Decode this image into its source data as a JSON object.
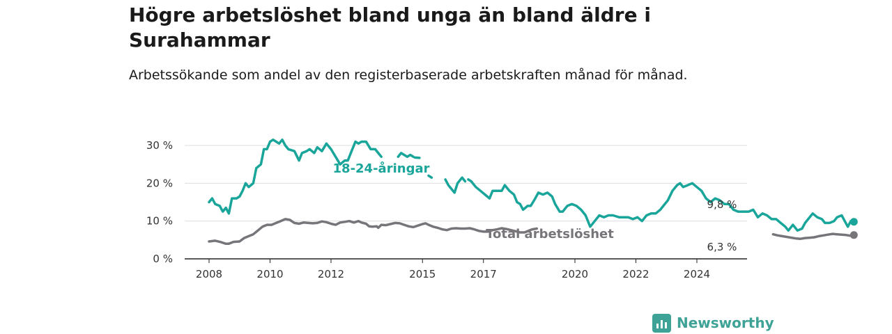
{
  "title": "Högre arbetslöshet bland unga än bland äldre i Surahammar",
  "subtitle": "Arbetssökande som andel av den registerbaserade arbetskraften månad för månad.",
  "brand": {
    "name": "Newsworthy",
    "icon": "newsworthy-bar-chart-icon",
    "color": "#3ea396"
  },
  "chart_data": {
    "type": "line",
    "x_ticks": [
      "2008",
      "2010",
      "2012",
      "2015",
      "2017",
      "2020",
      "2022",
      "2024"
    ],
    "y_ticks": [
      "0 %",
      "10 %",
      "20 %",
      "30 %"
    ],
    "ylim": [
      0,
      30
    ],
    "grid": "horizontal",
    "series": [
      {
        "name": "18-24-åringar",
        "color": "#1aa59a",
        "end_label": "9,8 %",
        "points": [
          [
            2008.0,
            15.0
          ],
          [
            2008.1,
            16.0
          ],
          [
            2008.2,
            14.5
          ],
          [
            2008.35,
            14.0
          ],
          [
            2008.45,
            12.5
          ],
          [
            2008.55,
            13.5
          ],
          [
            2008.65,
            12.0
          ],
          [
            2008.75,
            16.0
          ],
          [
            2008.9,
            16.0
          ],
          [
            2009.0,
            16.5
          ],
          [
            2009.1,
            18.0
          ],
          [
            2009.2,
            20.0
          ],
          [
            2009.3,
            19.0
          ],
          [
            2009.45,
            20.0
          ],
          [
            2009.55,
            24.0
          ],
          [
            2009.7,
            25.0
          ],
          [
            2009.8,
            29.0
          ],
          [
            2009.9,
            29.0
          ],
          [
            2010.0,
            31.0
          ],
          [
            2010.1,
            31.5
          ],
          [
            2010.2,
            31.0
          ],
          [
            2010.3,
            30.5
          ],
          [
            2010.4,
            31.5
          ],
          [
            2010.5,
            30.0
          ],
          [
            2010.6,
            29.0
          ],
          [
            2010.8,
            28.5
          ],
          [
            2010.95,
            26.0
          ],
          [
            2011.05,
            28.0
          ],
          [
            2011.2,
            28.5
          ],
          [
            2011.3,
            29.0
          ],
          [
            2011.45,
            28.0
          ],
          [
            2011.55,
            29.5
          ],
          [
            2011.7,
            28.5
          ],
          [
            2011.85,
            30.5
          ],
          [
            2012.0,
            29.0
          ],
          [
            2012.15,
            27.0
          ],
          [
            2012.3,
            25.0
          ],
          [
            2012.45,
            26.0
          ],
          [
            2012.55,
            26.0
          ],
          [
            2012.65,
            28.0
          ],
          [
            2012.8,
            31.0
          ],
          [
            2012.9,
            30.5
          ],
          [
            2013.0,
            31.0
          ],
          [
            2013.15,
            31.0
          ],
          [
            2013.3,
            29.0
          ],
          [
            2013.45,
            29.0
          ],
          [
            2013.55,
            28.0
          ],
          [
            2013.65,
            27.0
          ]
        ],
        "segments": [
          [
            [
              2014.2,
              27.0
            ],
            [
              2014.3,
              28.0
            ],
            [
              2014.4,
              27.5
            ],
            [
              2014.5,
              27.0
            ],
            [
              2014.6,
              27.5
            ],
            [
              2014.7,
              27.0
            ]
          ],
          [
            [
              2014.75,
              26.8
            ],
            [
              2014.9,
              26.7
            ]
          ],
          [
            [
              2015.2,
              22.0
            ],
            [
              2015.3,
              21.5
            ]
          ],
          [
            [
              2015.75,
              21.0
            ],
            [
              2015.85,
              19.5
            ],
            [
              2015.95,
              18.5
            ],
            [
              2016.05,
              17.5
            ],
            [
              2016.15,
              20.0
            ],
            [
              2016.3,
              21.5
            ],
            [
              2016.4,
              20.5
            ]
          ],
          [
            [
              2016.5,
              21.0
            ],
            [
              2016.6,
              20.5
            ],
            [
              2016.75,
              19.0
            ],
            [
              2016.9,
              18.0
            ],
            [
              2017.05,
              17.0
            ],
            [
              2017.2,
              16.0
            ],
            [
              2017.3,
              18.0
            ],
            [
              2017.45,
              18.0
            ],
            [
              2017.6,
              18.0
            ],
            [
              2017.7,
              19.5
            ],
            [
              2017.85,
              18.0
            ],
            [
              2018.0,
              17.0
            ],
            [
              2018.1,
              15.0
            ],
            [
              2018.2,
              14.5
            ],
            [
              2018.3,
              13.0
            ],
            [
              2018.45,
              14.0
            ],
            [
              2018.55,
              14.0
            ],
            [
              2018.7,
              16.0
            ],
            [
              2018.8,
              17.5
            ],
            [
              2018.95,
              17.0
            ],
            [
              2019.1,
              17.5
            ],
            [
              2019.25,
              16.5
            ],
            [
              2019.35,
              14.5
            ],
            [
              2019.5,
              12.5
            ],
            [
              2019.6,
              12.5
            ],
            [
              2019.75,
              14.0
            ],
            [
              2019.9,
              14.5
            ],
            [
              2020.05,
              14.0
            ],
            [
              2020.2,
              13.0
            ],
            [
              2020.35,
              11.5
            ],
            [
              2020.5,
              8.5
            ],
            [
              2020.65,
              10.0
            ],
            [
              2020.8,
              11.5
            ],
            [
              2020.95,
              11.0
            ],
            [
              2021.1,
              11.5
            ],
            [
              2021.25,
              11.5
            ],
            [
              2021.45,
              11.0
            ],
            [
              2021.6,
              11.0
            ],
            [
              2021.75,
              11.0
            ],
            [
              2021.9,
              10.5
            ],
            [
              2022.05,
              11.0
            ],
            [
              2022.2,
              10.0
            ],
            [
              2022.35,
              11.5
            ],
            [
              2022.5,
              12.0
            ],
            [
              2022.65,
              12.0
            ],
            [
              2022.8,
              13.0
            ],
            [
              2022.9,
              14.0
            ],
            [
              2023.05,
              15.5
            ],
            [
              2023.2,
              18.0
            ],
            [
              2023.35,
              19.5
            ],
            [
              2023.45,
              20.0
            ],
            [
              2023.55,
              19.0
            ],
            [
              2023.7,
              19.5
            ],
            [
              2023.85,
              20.0
            ],
            [
              2024.0,
              19.0
            ],
            [
              2024.15,
              18.0
            ],
            [
              2024.3,
              16.0
            ],
            [
              2024.45,
              15.0
            ],
            [
              2024.6,
              16.0
            ],
            [
              2024.75,
              15.5
            ],
            [
              2024.9,
              14.5
            ],
            [
              2025.05,
              14.5
            ],
            [
              2025.2,
              13.0
            ],
            [
              2025.35,
              12.5
            ],
            [
              2025.5,
              12.5
            ],
            [
              2025.7,
              12.5
            ],
            [
              2025.85,
              13.0
            ],
            [
              2026.0,
              11.0
            ],
            [
              2026.15,
              12.0
            ],
            [
              2026.3,
              11.5
            ],
            [
              2026.45,
              10.5
            ],
            [
              2026.6,
              10.5
            ],
            [
              2026.75,
              9.5
            ],
            [
              2026.9,
              8.5
            ],
            [
              2027.0,
              7.5
            ],
            [
              2027.15,
              9.0
            ],
            [
              2027.3,
              7.5
            ],
            [
              2027.45,
              8.0
            ],
            [
              2027.55,
              9.5
            ],
            [
              2027.7,
              11.0
            ],
            [
              2027.8,
              12.0
            ],
            [
              2027.95,
              11.0
            ],
            [
              2028.1,
              10.5
            ],
            [
              2028.2,
              9.5
            ],
            [
              2028.35,
              9.5
            ],
            [
              2028.5,
              10.0
            ],
            [
              2028.6,
              11.0
            ],
            [
              2028.75,
              11.5
            ],
            [
              2028.85,
              10.0
            ],
            [
              2028.95,
              8.5
            ],
            [
              2029.05,
              10.0
            ],
            [
              2029.15,
              9.8
            ]
          ]
        ]
      },
      {
        "name": "Total arbetslöshet",
        "color": "#77747a",
        "end_label": "6,3 %",
        "points": [
          [
            2008.0,
            4.6
          ],
          [
            2008.2,
            4.8
          ],
          [
            2008.4,
            4.4
          ],
          [
            2008.55,
            4.0
          ],
          [
            2008.65,
            4.0
          ],
          [
            2008.8,
            4.5
          ],
          [
            2009.0,
            4.6
          ],
          [
            2009.15,
            5.5
          ],
          [
            2009.3,
            6.0
          ],
          [
            2009.45,
            6.5
          ],
          [
            2009.6,
            7.5
          ],
          [
            2009.75,
            8.5
          ],
          [
            2009.9,
            9.0
          ],
          [
            2010.05,
            9.0
          ],
          [
            2010.2,
            9.5
          ],
          [
            2010.35,
            10.0
          ],
          [
            2010.5,
            10.5
          ],
          [
            2010.65,
            10.3
          ],
          [
            2010.8,
            9.5
          ],
          [
            2010.95,
            9.3
          ],
          [
            2011.1,
            9.6
          ],
          [
            2011.25,
            9.5
          ],
          [
            2011.4,
            9.4
          ],
          [
            2011.55,
            9.5
          ],
          [
            2011.7,
            9.9
          ],
          [
            2011.85,
            9.7
          ],
          [
            2012.0,
            9.3
          ],
          [
            2012.15,
            9.0
          ],
          [
            2012.3,
            9.6
          ],
          [
            2012.45,
            9.8
          ],
          [
            2012.6,
            10.0
          ],
          [
            2012.75,
            9.6
          ],
          [
            2012.9,
            10.0
          ],
          [
            2013.0,
            9.6
          ],
          [
            2013.15,
            9.3
          ],
          [
            2013.25,
            8.6
          ],
          [
            2013.35,
            8.5
          ],
          [
            2013.5,
            8.6
          ],
          [
            2013.55,
            8.2
          ],
          [
            2013.65,
            9.0
          ],
          [
            2013.8,
            8.9
          ],
          [
            2013.95,
            9.2
          ],
          [
            2014.1,
            9.5
          ],
          [
            2014.25,
            9.4
          ],
          [
            2014.4,
            9.0
          ],
          [
            2014.55,
            8.6
          ],
          [
            2014.7,
            8.4
          ],
          [
            2014.85,
            8.8
          ],
          [
            2015.0,
            9.2
          ],
          [
            2015.1,
            9.4
          ],
          [
            2015.2,
            9.0
          ],
          [
            2015.35,
            8.5
          ],
          [
            2015.5,
            8.2
          ],
          [
            2015.65,
            7.8
          ],
          [
            2015.8,
            7.6
          ],
          [
            2015.95,
            8.0
          ],
          [
            2016.1,
            8.1
          ],
          [
            2016.25,
            8.0
          ],
          [
            2016.4,
            8.0
          ],
          [
            2016.55,
            8.1
          ],
          [
            2016.7,
            7.8
          ],
          [
            2016.85,
            7.4
          ],
          [
            2017.0,
            7.2
          ],
          [
            2017.15,
            7.2
          ],
          [
            2017.3,
            7.6
          ],
          [
            2017.45,
            7.8
          ],
          [
            2017.6,
            8.1
          ],
          [
            2017.75,
            7.9
          ],
          [
            2017.9,
            7.6
          ],
          [
            2018.05,
            7.3
          ],
          [
            2018.2,
            7.0
          ],
          [
            2018.35,
            7.0
          ],
          [
            2018.5,
            7.5
          ],
          [
            2018.6,
            7.8
          ],
          [
            2018.75,
            8.0
          ]
        ],
        "segments": [
          [
            [
              2026.5,
              6.5
            ],
            [
              2026.65,
              6.2
            ],
            [
              2026.8,
              6.0
            ],
            [
              2026.95,
              5.8
            ],
            [
              2027.1,
              5.6
            ],
            [
              2027.25,
              5.4
            ],
            [
              2027.4,
              5.3
            ],
            [
              2027.55,
              5.5
            ],
            [
              2027.7,
              5.6
            ],
            [
              2027.85,
              5.7
            ],
            [
              2028.0,
              6.0
            ],
            [
              2028.15,
              6.2
            ],
            [
              2028.3,
              6.4
            ],
            [
              2028.45,
              6.6
            ],
            [
              2028.6,
              6.5
            ],
            [
              2028.75,
              6.4
            ],
            [
              2028.9,
              6.3
            ],
            [
              2029.05,
              6.1
            ],
            [
              2029.15,
              6.3
            ]
          ]
        ]
      }
    ]
  }
}
